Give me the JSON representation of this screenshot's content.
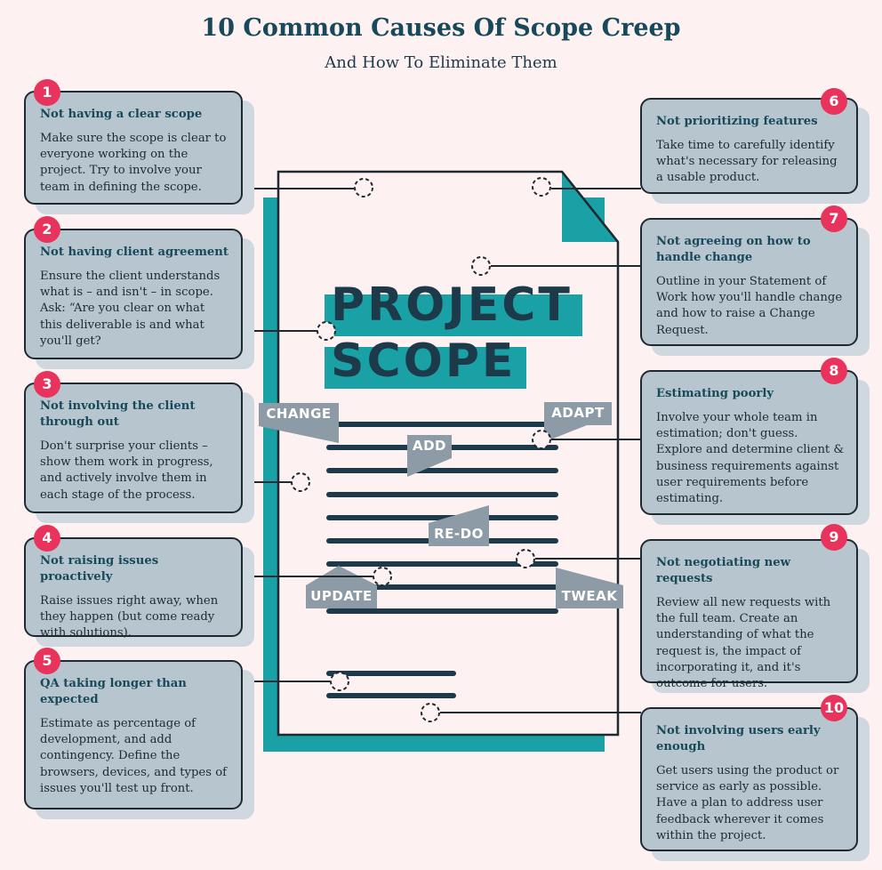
{
  "header": {
    "title": "10 Common Causes Of Scope Creep",
    "subtitle": "And How To Eliminate Them"
  },
  "document": {
    "heading_line1": "PROJECT",
    "heading_line2": "SCOPE",
    "tags": {
      "change": "CHANGE",
      "adapt": "ADAPT",
      "add": "ADD",
      "redo": "RE-DO",
      "update": "UPDATE",
      "tweak": "TWEAK"
    }
  },
  "colors": {
    "teal": "#19a1a6",
    "dark_teal": "#1d3a4a",
    "badge": "#e8335c",
    "card": "#b7c5cf",
    "tag_gray": "#8c9ba6"
  },
  "causes": [
    {
      "number": "1",
      "title": "Not having a clear scope",
      "body": "Make sure the scope is clear to everyone working on the project. Try to involve your team in defining the scope."
    },
    {
      "number": "2",
      "title": "Not having client agreement",
      "body": "Ensure the client understands what is – and isn't – in scope. Ask: “Are you clear on what this deliverable is and what you'll get?"
    },
    {
      "number": "3",
      "title": "Not involving the client through out",
      "body": "Don't surprise your clients – show them work in progress, and actively involve them in each stage of the process."
    },
    {
      "number": "4",
      "title": "Not raising issues proactively",
      "body": "Raise issues right away, when they happen (but come ready with solutions)."
    },
    {
      "number": "5",
      "title": "QA taking longer than expected",
      "body": "Estimate as percentage of development, and add contingency. Define the browsers, devices, and types of issues you'll test up front."
    },
    {
      "number": "6",
      "title": "Not prioritizing features",
      "body": "Take time to carefully identify what's necessary for releasing a usable product."
    },
    {
      "number": "7",
      "title": "Not agreeing on how to handle change",
      "body": "Outline in your Statement of Work how you'll handle change and how to raise a Change Request."
    },
    {
      "number": "8",
      "title": "Estimating poorly",
      "body": "Involve your whole team in estimation; don't guess. Explore and determine client & business requirements against user requirements before estimating."
    },
    {
      "number": "9",
      "title": "Not negotiating new requests",
      "body": "Review all new requests with the full team. Create an understanding of what the request is, the impact of incorporating it, and it's outcome for users."
    },
    {
      "number": "10",
      "title": "Not involving users early enough",
      "body": "Get users using the product or service as early as possible. Have a plan to address user feedback wherever it comes within the project."
    }
  ]
}
